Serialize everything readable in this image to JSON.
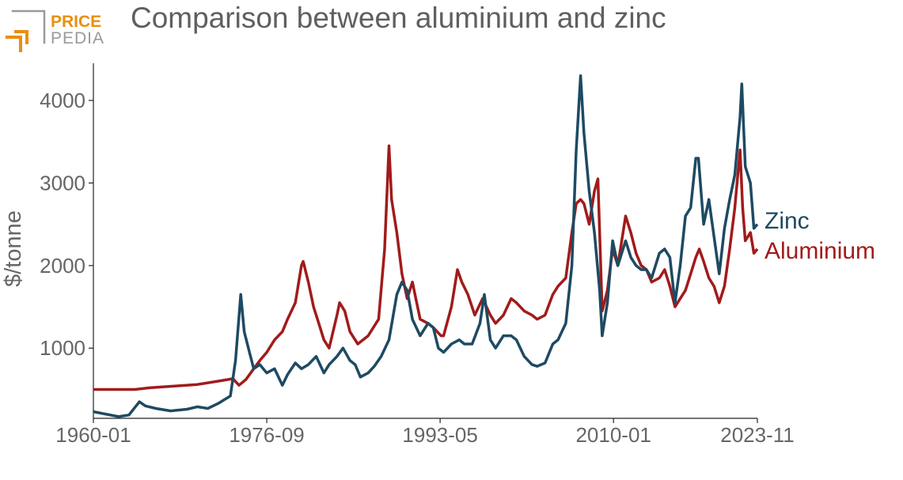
{
  "brand": {
    "top": "PRICE",
    "bottom": "PEDIA",
    "colors": {
      "accent": "#e8900f",
      "gray": "#9a9a9a"
    }
  },
  "chart_data": {
    "type": "line",
    "title": "Comparison between aluminium and zinc",
    "ylabel": "$/tonne",
    "xlabel": "",
    "x_ticks": [
      "1960-01",
      "1976-09",
      "1993-05",
      "2010-01",
      "2023-11"
    ],
    "y_ticks": [
      "1000",
      "2000",
      "3000",
      "4000"
    ],
    "ylim": [
      150,
      4450
    ],
    "xlim": [
      "1960-01",
      "2023-11"
    ],
    "grid": false,
    "legend": "direct labels at line ends",
    "series": [
      {
        "name": "Zinc",
        "color": "#1e4a63",
        "points": [
          [
            "1960-01",
            230
          ],
          [
            "1962-06",
            170
          ],
          [
            "1963-06",
            190
          ],
          [
            "1964-06",
            350
          ],
          [
            "1965-01",
            300
          ],
          [
            "1966-01",
            270
          ],
          [
            "1967-06",
            240
          ],
          [
            "1969-01",
            260
          ],
          [
            "1970-01",
            290
          ],
          [
            "1971-01",
            270
          ],
          [
            "1972-01",
            330
          ],
          [
            "1973-03",
            420
          ],
          [
            "1973-09",
            850
          ],
          [
            "1974-03",
            1650
          ],
          [
            "1974-07",
            1200
          ],
          [
            "1975-01",
            950
          ],
          [
            "1975-06",
            750
          ],
          [
            "1976-01",
            800
          ],
          [
            "1976-09",
            700
          ],
          [
            "1977-06",
            750
          ],
          [
            "1978-03",
            550
          ],
          [
            "1978-09",
            680
          ],
          [
            "1979-06",
            820
          ],
          [
            "1980-01",
            750
          ],
          [
            "1980-09",
            800
          ],
          [
            "1981-06",
            900
          ],
          [
            "1982-03",
            700
          ],
          [
            "1982-09",
            800
          ],
          [
            "1983-06",
            900
          ],
          [
            "1984-01",
            1000
          ],
          [
            "1984-09",
            850
          ],
          [
            "1985-03",
            800
          ],
          [
            "1985-09",
            650
          ],
          [
            "1986-06",
            700
          ],
          [
            "1987-01",
            780
          ],
          [
            "1987-09",
            900
          ],
          [
            "1988-06",
            1100
          ],
          [
            "1989-03",
            1650
          ],
          [
            "1989-09",
            1800
          ],
          [
            "1990-03",
            1700
          ],
          [
            "1990-09",
            1350
          ],
          [
            "1991-06",
            1150
          ],
          [
            "1992-03",
            1300
          ],
          [
            "1992-09",
            1250
          ],
          [
            "1993-03",
            1000
          ],
          [
            "1993-09",
            950
          ],
          [
            "1994-06",
            1050
          ],
          [
            "1995-03",
            1100
          ],
          [
            "1995-09",
            1050
          ],
          [
            "1996-06",
            1050
          ],
          [
            "1997-03",
            1300
          ],
          [
            "1997-08",
            1650
          ],
          [
            "1998-03",
            1100
          ],
          [
            "1998-09",
            1000
          ],
          [
            "1999-06",
            1150
          ],
          [
            "2000-03",
            1150
          ],
          [
            "2000-09",
            1100
          ],
          [
            "2001-06",
            900
          ],
          [
            "2002-03",
            800
          ],
          [
            "2002-09",
            780
          ],
          [
            "2003-06",
            820
          ],
          [
            "2004-03",
            1050
          ],
          [
            "2004-09",
            1100
          ],
          [
            "2005-06",
            1300
          ],
          [
            "2006-01",
            2000
          ],
          [
            "2006-06",
            3400
          ],
          [
            "2006-11",
            4300
          ],
          [
            "2007-03",
            3600
          ],
          [
            "2007-09",
            2900
          ],
          [
            "2008-03",
            2400
          ],
          [
            "2008-09",
            1700
          ],
          [
            "2008-12",
            1150
          ],
          [
            "2009-06",
            1550
          ],
          [
            "2009-12",
            2300
          ],
          [
            "2010-06",
            2000
          ],
          [
            "2011-03",
            2300
          ],
          [
            "2011-09",
            2100
          ],
          [
            "2012-03",
            2000
          ],
          [
            "2012-09",
            1950
          ],
          [
            "2013-03",
            1950
          ],
          [
            "2013-09",
            1850
          ],
          [
            "2014-06",
            2150
          ],
          [
            "2014-12",
            2200
          ],
          [
            "2015-06",
            2100
          ],
          [
            "2015-12",
            1550
          ],
          [
            "2016-06",
            2000
          ],
          [
            "2016-12",
            2600
          ],
          [
            "2017-06",
            2700
          ],
          [
            "2017-12",
            3300
          ],
          [
            "2018-03",
            3300
          ],
          [
            "2018-09",
            2500
          ],
          [
            "2019-03",
            2800
          ],
          [
            "2019-09",
            2350
          ],
          [
            "2020-03",
            1900
          ],
          [
            "2020-09",
            2450
          ],
          [
            "2021-03",
            2800
          ],
          [
            "2021-09",
            3100
          ],
          [
            "2022-03",
            3800
          ],
          [
            "2022-05",
            4200
          ],
          [
            "2022-09",
            3200
          ],
          [
            "2023-03",
            3000
          ],
          [
            "2023-07",
            2450
          ],
          [
            "2023-11",
            2500
          ]
        ]
      },
      {
        "name": "Aluminium",
        "color": "#a11b1b",
        "points": [
          [
            "1960-01",
            500
          ],
          [
            "1964-01",
            500
          ],
          [
            "1965-06",
            520
          ],
          [
            "1970-01",
            560
          ],
          [
            "1972-01",
            600
          ],
          [
            "1973-06",
            630
          ],
          [
            "1974-01",
            550
          ],
          [
            "1974-09",
            620
          ],
          [
            "1975-06",
            750
          ],
          [
            "1976-01",
            850
          ],
          [
            "1976-09",
            950
          ],
          [
            "1977-06",
            1100
          ],
          [
            "1978-03",
            1200
          ],
          [
            "1978-09",
            1350
          ],
          [
            "1979-06",
            1550
          ],
          [
            "1980-01",
            2000
          ],
          [
            "1980-03",
            2050
          ],
          [
            "1980-09",
            1800
          ],
          [
            "1981-03",
            1500
          ],
          [
            "1981-09",
            1300
          ],
          [
            "1982-03",
            1100
          ],
          [
            "1982-09",
            1000
          ],
          [
            "1983-06",
            1400
          ],
          [
            "1983-09",
            1550
          ],
          [
            "1984-03",
            1450
          ],
          [
            "1984-09",
            1200
          ],
          [
            "1985-06",
            1050
          ],
          [
            "1986-06",
            1150
          ],
          [
            "1987-06",
            1350
          ],
          [
            "1988-01",
            2200
          ],
          [
            "1988-06",
            3450
          ],
          [
            "1988-09",
            2800
          ],
          [
            "1989-03",
            2400
          ],
          [
            "1989-09",
            1900
          ],
          [
            "1990-03",
            1600
          ],
          [
            "1990-09",
            1800
          ],
          [
            "1991-06",
            1350
          ],
          [
            "1992-03",
            1300
          ],
          [
            "1992-09",
            1250
          ],
          [
            "1993-06",
            1150
          ],
          [
            "1993-09",
            1150
          ],
          [
            "1994-06",
            1500
          ],
          [
            "1995-01",
            1950
          ],
          [
            "1995-06",
            1800
          ],
          [
            "1996-01",
            1650
          ],
          [
            "1996-09",
            1400
          ],
          [
            "1997-06",
            1600
          ],
          [
            "1998-03",
            1400
          ],
          [
            "1998-09",
            1300
          ],
          [
            "1999-06",
            1400
          ],
          [
            "2000-03",
            1600
          ],
          [
            "2000-09",
            1550
          ],
          [
            "2001-06",
            1450
          ],
          [
            "2002-03",
            1400
          ],
          [
            "2002-09",
            1350
          ],
          [
            "2003-06",
            1400
          ],
          [
            "2004-03",
            1650
          ],
          [
            "2004-09",
            1750
          ],
          [
            "2005-06",
            1850
          ],
          [
            "2006-01",
            2400
          ],
          [
            "2006-06",
            2750
          ],
          [
            "2006-11",
            2800
          ],
          [
            "2007-03",
            2750
          ],
          [
            "2007-09",
            2500
          ],
          [
            "2008-03",
            2900
          ],
          [
            "2008-07",
            3050
          ],
          [
            "2008-12",
            1450
          ],
          [
            "2009-06",
            1700
          ],
          [
            "2009-12",
            2200
          ],
          [
            "2010-06",
            2000
          ],
          [
            "2011-03",
            2600
          ],
          [
            "2011-09",
            2400
          ],
          [
            "2012-03",
            2150
          ],
          [
            "2012-09",
            2000
          ],
          [
            "2013-03",
            1950
          ],
          [
            "2013-09",
            1800
          ],
          [
            "2014-06",
            1850
          ],
          [
            "2014-12",
            1950
          ],
          [
            "2015-06",
            1750
          ],
          [
            "2015-12",
            1500
          ],
          [
            "2016-06",
            1600
          ],
          [
            "2016-12",
            1700
          ],
          [
            "2017-06",
            1900
          ],
          [
            "2017-12",
            2100
          ],
          [
            "2018-04",
            2200
          ],
          [
            "2018-09",
            2050
          ],
          [
            "2019-03",
            1850
          ],
          [
            "2019-09",
            1750
          ],
          [
            "2020-03",
            1550
          ],
          [
            "2020-09",
            1750
          ],
          [
            "2021-03",
            2200
          ],
          [
            "2021-09",
            2700
          ],
          [
            "2022-03",
            3400
          ],
          [
            "2022-06",
            2700
          ],
          [
            "2022-09",
            2300
          ],
          [
            "2023-03",
            2400
          ],
          [
            "2023-07",
            2150
          ],
          [
            "2023-11",
            2200
          ]
        ]
      }
    ]
  }
}
